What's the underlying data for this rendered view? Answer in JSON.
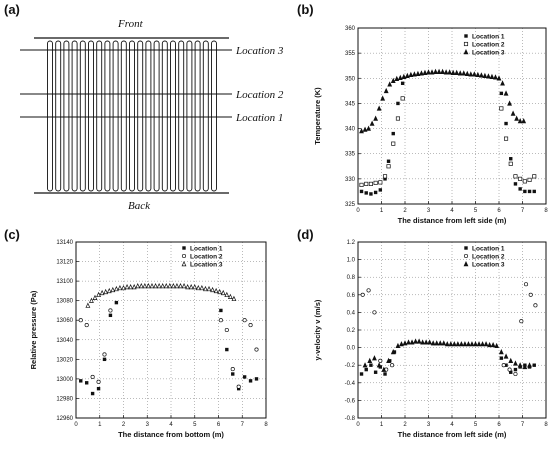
{
  "figure": {
    "panel_a": {
      "label": "(a)",
      "front": "Front",
      "back": "Back",
      "locations": [
        "Location 3",
        "Location 2",
        "Location 1"
      ],
      "tube_count": 21
    }
  },
  "chart_data": [
    {
      "id": "b",
      "label": "(b)",
      "type": "scatter",
      "xlabel": "The distance from left side (m)",
      "ylabel": "Temperature (K)",
      "xlim": [
        0,
        8
      ],
      "ylim": [
        325,
        360
      ],
      "xticks": [
        "0",
        "1",
        "2",
        "3",
        "4",
        "5",
        "6",
        "7",
        "8"
      ],
      "yticks": [
        "325",
        "330",
        "335",
        "340",
        "345",
        "350",
        "355",
        "360"
      ],
      "grid": true,
      "legend": "top-right",
      "series": [
        {
          "name": "Location 1",
          "marker": "square-filled",
          "x": [
            0.15,
            0.35,
            0.55,
            0.75,
            0.95,
            1.15,
            1.3,
            1.5,
            1.7,
            1.9,
            6.1,
            6.3,
            6.5,
            6.7,
            6.9,
            7.1,
            7.3,
            7.5
          ],
          "y": [
            327.5,
            327.2,
            327,
            327.3,
            327.8,
            330,
            333.5,
            339,
            345,
            349,
            347,
            341,
            334,
            329,
            328,
            327.5,
            327.5,
            327.5
          ]
        },
        {
          "name": "Location 2",
          "marker": "square-open",
          "x": [
            0.15,
            0.35,
            0.55,
            0.75,
            0.95,
            1.15,
            1.3,
            1.5,
            1.7,
            1.9,
            6.1,
            6.3,
            6.5,
            6.7,
            6.9,
            7.1,
            7.3,
            7.5
          ],
          "y": [
            328.8,
            329,
            329,
            329.2,
            329.3,
            330.5,
            332.5,
            337,
            342,
            346,
            344,
            338,
            333,
            330.5,
            330,
            329.5,
            329.8,
            330.5
          ]
        },
        {
          "name": "Location 3",
          "marker": "triangle-filled",
          "x": [
            0.15,
            0.3,
            0.45,
            0.6,
            0.75,
            0.9,
            1.05,
            1.2,
            1.35,
            1.5,
            1.65,
            1.8,
            1.95,
            2.1,
            2.25,
            2.4,
            2.55,
            2.7,
            2.85,
            3.0,
            3.15,
            3.3,
            3.45,
            3.6,
            3.75,
            3.9,
            4.05,
            4.2,
            4.35,
            4.5,
            4.65,
            4.8,
            4.95,
            5.1,
            5.25,
            5.4,
            5.55,
            5.7,
            5.85,
            6.0,
            6.15,
            6.3,
            6.45,
            6.6,
            6.75,
            6.9,
            7.05
          ],
          "y": [
            339.5,
            339.8,
            340,
            341,
            342,
            344,
            346,
            347.5,
            348.8,
            349.5,
            349.9,
            350.1,
            350.3,
            350.5,
            350.7,
            350.8,
            350.9,
            351,
            351.1,
            351.2,
            351.2,
            351.3,
            351.3,
            351.3,
            351.2,
            351.2,
            351.1,
            351.1,
            351,
            351,
            350.9,
            350.8,
            350.8,
            350.7,
            350.6,
            350.5,
            350.4,
            350.3,
            350.2,
            350,
            349,
            347,
            345,
            343,
            342,
            341.5,
            341.5
          ]
        }
      ]
    },
    {
      "id": "c",
      "label": "(c)",
      "type": "scatter",
      "xlabel": "The distance from bottom (m)",
      "ylabel": "Relative pressure (Pa)",
      "xlim": [
        0,
        8
      ],
      "ylim": [
        12960,
        13140
      ],
      "xticks": [
        "0",
        "1",
        "2",
        "3",
        "4",
        "5",
        "6",
        "7",
        "8"
      ],
      "yticks": [
        "12960",
        "12980",
        "13000",
        "13020",
        "13040",
        "13060",
        "13080",
        "13100",
        "13120",
        "13140"
      ],
      "grid": true,
      "legend": "top-right",
      "series": [
        {
          "name": "Location 1",
          "marker": "square-filled",
          "x": [
            0.2,
            0.45,
            0.7,
            0.95,
            1.2,
            1.45,
            1.7,
            6.1,
            6.35,
            6.6,
            6.85,
            7.1,
            7.35,
            7.6
          ],
          "y": [
            12998,
            12996,
            12985,
            12990,
            13020,
            13065,
            13078,
            13070,
            13030,
            13005,
            12990,
            13002,
            12998,
            13000
          ]
        },
        {
          "name": "Location 2",
          "marker": "circle-open",
          "x": [
            0.2,
            0.45,
            0.7,
            0.95,
            1.2,
            1.45,
            6.1,
            6.35,
            6.6,
            6.85,
            7.1,
            7.35,
            7.6
          ],
          "y": [
            13060,
            13055,
            13002,
            12997,
            13025,
            13070,
            13060,
            13050,
            13010,
            12992,
            13060,
            13055,
            13030
          ]
        },
        {
          "name": "Location 3",
          "marker": "triangle-open",
          "x": [
            0.5,
            0.65,
            0.8,
            0.95,
            1.1,
            1.25,
            1.4,
            1.55,
            1.7,
            1.85,
            2.0,
            2.15,
            2.3,
            2.45,
            2.6,
            2.75,
            2.9,
            3.05,
            3.2,
            3.35,
            3.5,
            3.65,
            3.8,
            3.95,
            4.1,
            4.25,
            4.4,
            4.55,
            4.7,
            4.85,
            5.0,
            5.15,
            5.3,
            5.45,
            5.6,
            5.75,
            5.9,
            6.05,
            6.2,
            6.35,
            6.5,
            6.65
          ],
          "y": [
            13075,
            13080,
            13083,
            13086,
            13088,
            13089,
            13090,
            13091,
            13092,
            13093,
            13093,
            13094,
            13094,
            13094,
            13095,
            13095,
            13095,
            13095,
            13095,
            13095,
            13095,
            13095,
            13095,
            13095,
            13095,
            13095,
            13095,
            13095,
            13094,
            13094,
            13094,
            13093,
            13093,
            13092,
            13092,
            13091,
            13090,
            13089,
            13088,
            13086,
            13084,
            13082
          ]
        }
      ]
    },
    {
      "id": "d",
      "label": "(d)",
      "type": "scatter",
      "xlabel": "The distance from left side (m)",
      "ylabel": "y-velocity v (m/s)",
      "xlim": [
        0,
        8
      ],
      "ylim": [
        -0.8,
        1.2
      ],
      "xticks": [
        "0",
        "1",
        "2",
        "3",
        "4",
        "5",
        "6",
        "7",
        "8"
      ],
      "yticks": [
        "-0.8",
        "-0.6",
        "-0.4",
        "-0.2",
        "0.0",
        "0.2",
        "0.4",
        "0.6",
        "0.8",
        "1.0",
        "1.2"
      ],
      "grid": true,
      "legend": "top-right",
      "series": [
        {
          "name": "Location 1",
          "marker": "square-filled",
          "x": [
            0.15,
            0.35,
            0.55,
            0.75,
            0.95,
            1.15,
            1.35,
            1.55,
            6.1,
            6.3,
            6.5,
            6.7,
            6.9,
            7.1,
            7.3,
            7.5
          ],
          "y": [
            -0.3,
            -0.25,
            -0.2,
            -0.28,
            -0.22,
            -0.3,
            -0.15,
            -0.05,
            -0.12,
            -0.2,
            -0.28,
            -0.25,
            -0.22,
            -0.2,
            -0.22,
            -0.2
          ]
        },
        {
          "name": "Location 2",
          "marker": "circle-open",
          "x": [
            0.2,
            0.45,
            0.7,
            0.95,
            1.2,
            1.45,
            6.2,
            6.45,
            6.7,
            6.95,
            7.15,
            7.35,
            7.55
          ],
          "y": [
            0.6,
            0.65,
            0.4,
            -0.15,
            -0.25,
            -0.2,
            -0.2,
            -0.25,
            -0.3,
            0.3,
            0.72,
            0.6,
            0.48
          ]
        },
        {
          "name": "Location 3",
          "marker": "triangle-filled",
          "x": [
            0.3,
            0.5,
            0.7,
            0.9,
            1.1,
            1.3,
            1.5,
            1.7,
            1.85,
            2.0,
            2.15,
            2.3,
            2.45,
            2.6,
            2.75,
            2.9,
            3.05,
            3.2,
            3.35,
            3.5,
            3.65,
            3.8,
            3.95,
            4.1,
            4.25,
            4.4,
            4.55,
            4.7,
            4.85,
            5.0,
            5.15,
            5.3,
            5.45,
            5.6,
            5.75,
            5.9,
            6.1,
            6.3,
            6.5,
            6.7,
            6.9,
            7.1,
            7.3
          ],
          "y": [
            -0.2,
            -0.15,
            -0.12,
            -0.2,
            -0.25,
            -0.15,
            -0.05,
            0.02,
            0.04,
            0.05,
            0.06,
            0.06,
            0.07,
            0.07,
            0.06,
            0.06,
            0.06,
            0.05,
            0.05,
            0.05,
            0.05,
            0.04,
            0.04,
            0.04,
            0.04,
            0.04,
            0.04,
            0.04,
            0.04,
            0.04,
            0.04,
            0.04,
            0.04,
            0.03,
            0.03,
            0.02,
            -0.05,
            -0.1,
            -0.15,
            -0.18,
            -0.2,
            -0.22,
            -0.2
          ]
        }
      ]
    }
  ]
}
